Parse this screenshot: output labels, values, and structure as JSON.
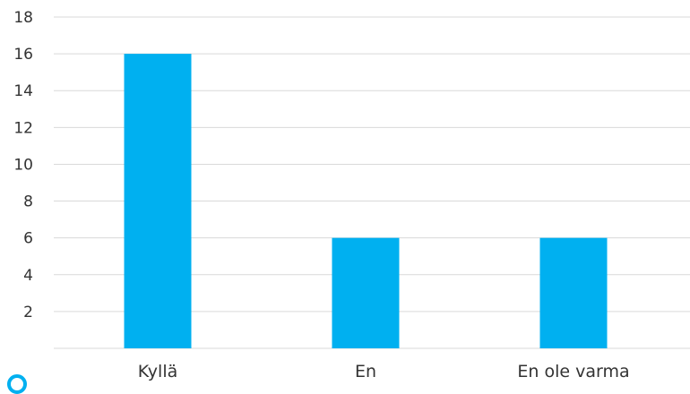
{
  "chart_data": {
    "type": "bar",
    "title": "",
    "xlabel": "",
    "ylabel": "",
    "categories": [
      "Kyllä",
      "En",
      "En ole varma"
    ],
    "values": [
      16,
      6,
      6
    ],
    "ylim": [
      0,
      18
    ],
    "yticks": [
      2,
      4,
      6,
      8,
      10,
      12,
      14,
      16,
      18
    ],
    "grid": true,
    "legend": "none",
    "bar_color": "#00b0f0",
    "grid_color": "#d9d9d9"
  }
}
